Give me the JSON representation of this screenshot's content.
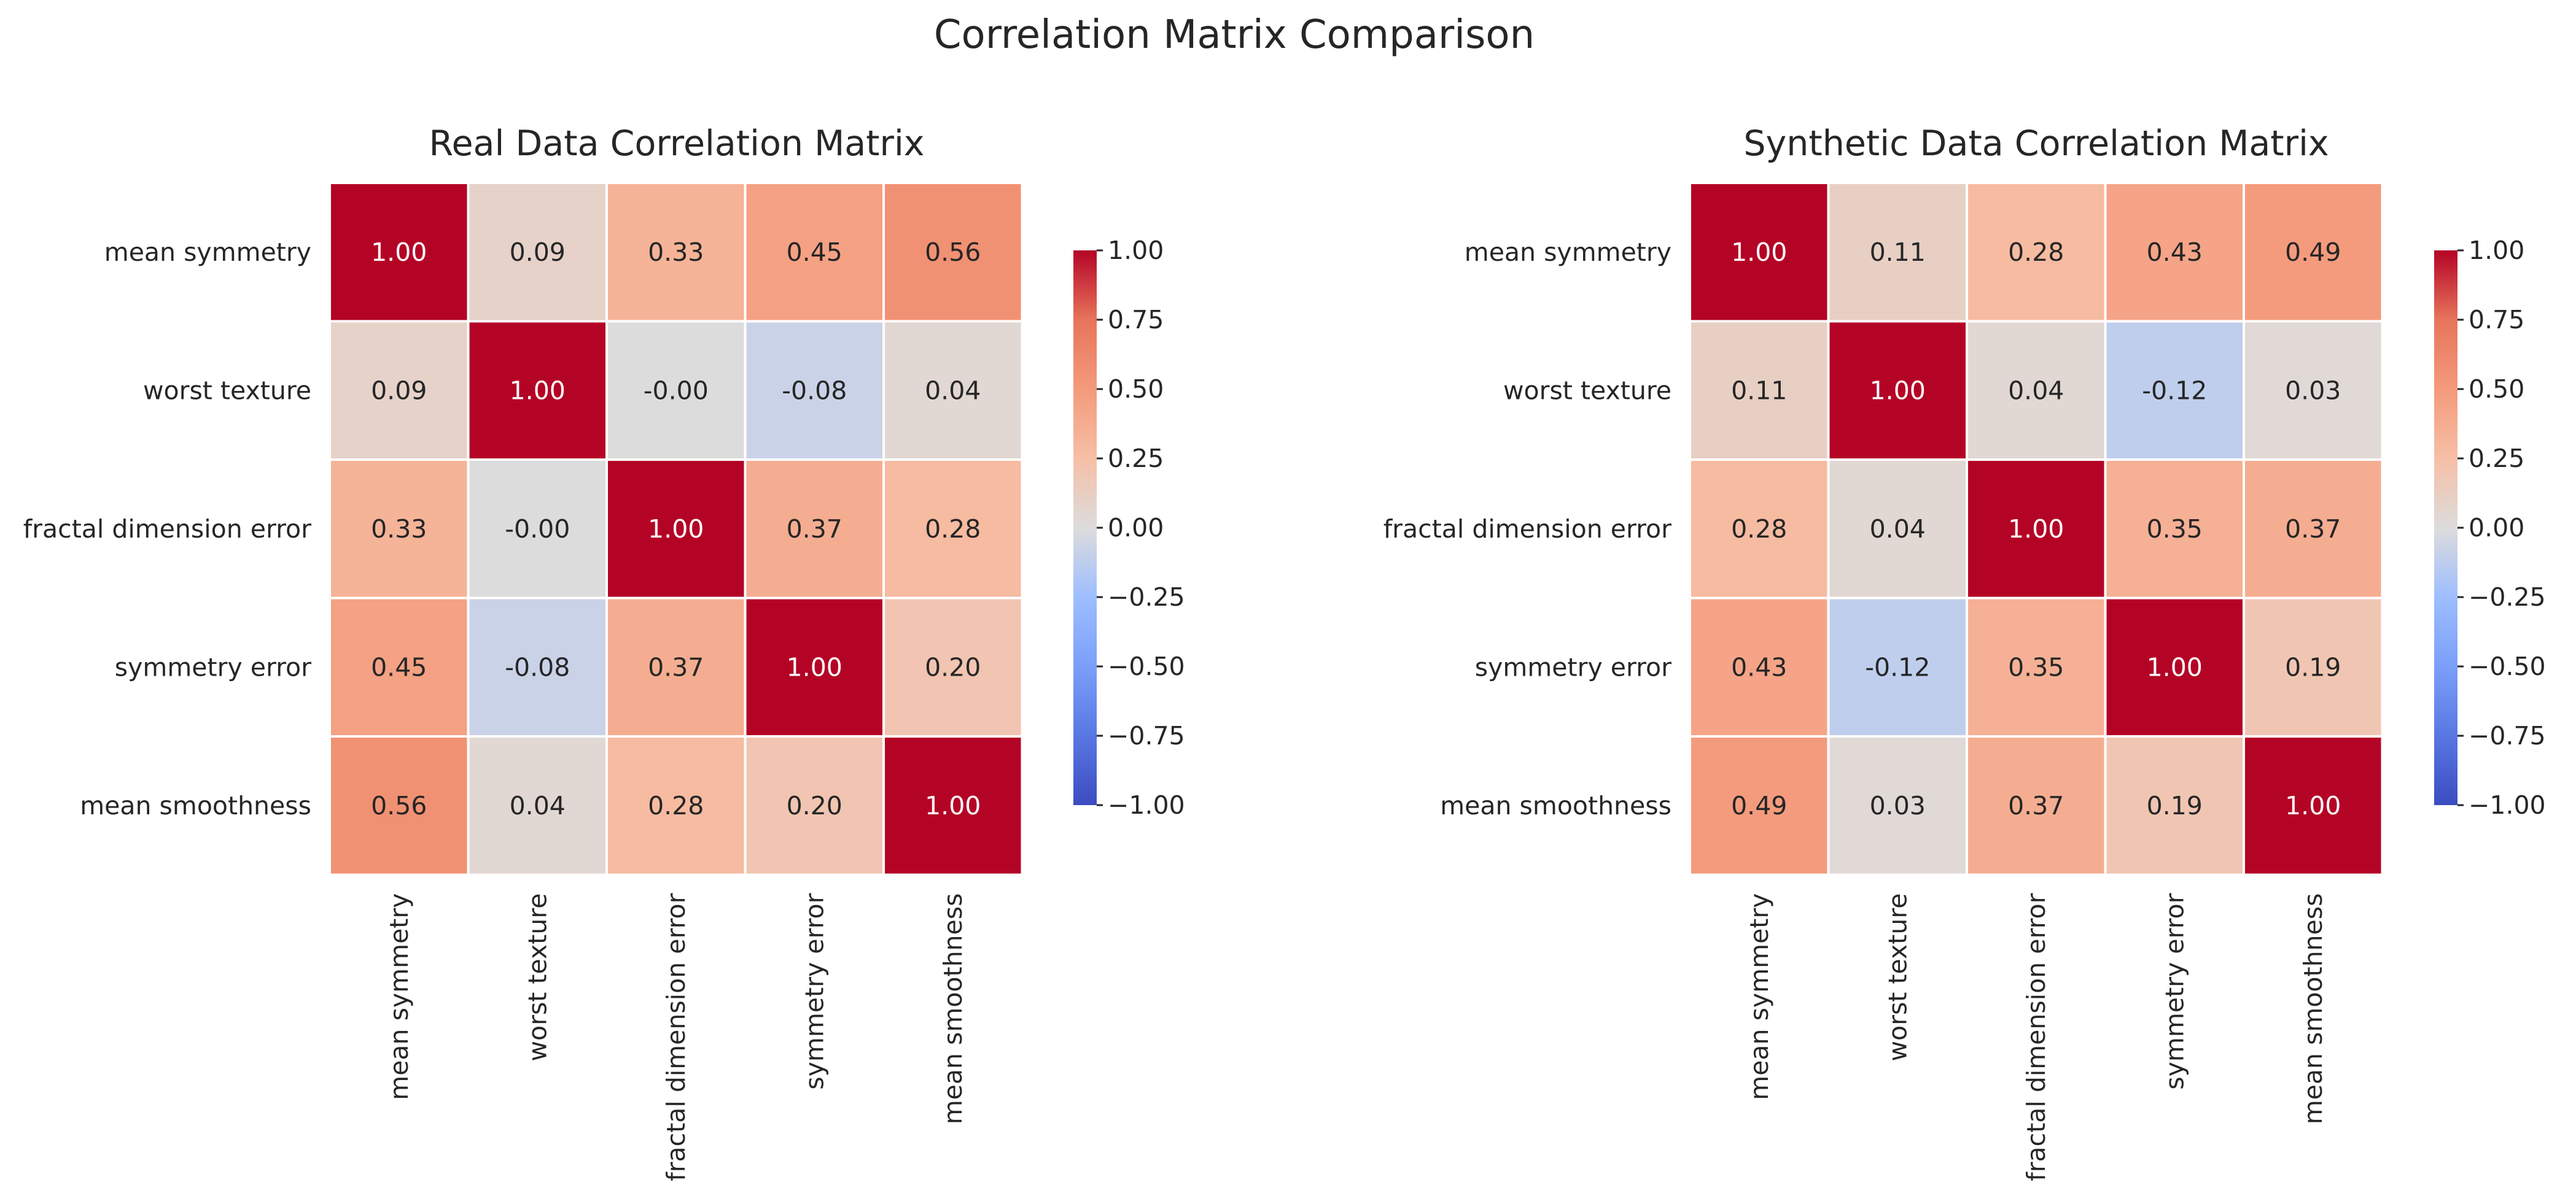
{
  "figure": {
    "suptitle": "Correlation Matrix Comparison"
  },
  "chart_data": [
    {
      "type": "heatmap",
      "title": "Real Data Correlation Matrix",
      "x_categories": [
        "mean symmetry",
        "worst texture",
        "fractal dimension error",
        "symmetry error",
        "mean smoothness"
      ],
      "y_categories": [
        "mean symmetry",
        "worst texture",
        "fractal dimension error",
        "symmetry error",
        "mean smoothness"
      ],
      "values": [
        [
          1.0,
          0.09,
          0.33,
          0.45,
          0.56
        ],
        [
          0.09,
          1.0,
          -0.0,
          -0.08,
          0.04
        ],
        [
          0.33,
          -0.0,
          1.0,
          0.37,
          0.28
        ],
        [
          0.45,
          -0.08,
          0.37,
          1.0,
          0.2
        ],
        [
          0.56,
          0.04,
          0.28,
          0.2,
          1.0
        ]
      ],
      "labels": [
        [
          "1.00",
          "0.09",
          "0.33",
          "0.45",
          "0.56"
        ],
        [
          "0.09",
          "1.00",
          "-0.00",
          "-0.08",
          "0.04"
        ],
        [
          "0.33",
          "-0.00",
          "1.00",
          "0.37",
          "0.28"
        ],
        [
          "0.45",
          "-0.08",
          "0.37",
          "1.00",
          "0.20"
        ],
        [
          "0.56",
          "0.04",
          "0.28",
          "0.20",
          "1.00"
        ]
      ],
      "colormap": "coolwarm",
      "vmin": -1.0,
      "vmax": 1.0,
      "colorbar_ticks": [
        "1.00",
        "0.75",
        "0.50",
        "0.25",
        "0.00",
        "−0.25",
        "−0.50",
        "−0.75",
        "−1.00"
      ]
    },
    {
      "type": "heatmap",
      "title": "Synthetic Data Correlation Matrix",
      "x_categories": [
        "mean symmetry",
        "worst texture",
        "fractal dimension error",
        "symmetry error",
        "mean smoothness"
      ],
      "y_categories": [
        "mean symmetry",
        "worst texture",
        "fractal dimension error",
        "symmetry error",
        "mean smoothness"
      ],
      "values": [
        [
          1.0,
          0.11,
          0.28,
          0.43,
          0.49
        ],
        [
          0.11,
          1.0,
          0.04,
          -0.12,
          0.03
        ],
        [
          0.28,
          0.04,
          1.0,
          0.35,
          0.37
        ],
        [
          0.43,
          -0.12,
          0.35,
          1.0,
          0.19
        ],
        [
          0.49,
          0.03,
          0.37,
          0.19,
          1.0
        ]
      ],
      "labels": [
        [
          "1.00",
          "0.11",
          "0.28",
          "0.43",
          "0.49"
        ],
        [
          "0.11",
          "1.00",
          "0.04",
          "-0.12",
          "0.03"
        ],
        [
          "0.28",
          "0.04",
          "1.00",
          "0.35",
          "0.37"
        ],
        [
          "0.43",
          "-0.12",
          "0.35",
          "1.00",
          "0.19"
        ],
        [
          "0.49",
          "0.03",
          "0.37",
          "0.19",
          "1.00"
        ]
      ],
      "colormap": "coolwarm",
      "vmin": -1.0,
      "vmax": 1.0,
      "colorbar_ticks": [
        "1.00",
        "0.75",
        "0.50",
        "0.25",
        "0.00",
        "−0.25",
        "−0.50",
        "−0.75",
        "−1.00"
      ]
    }
  ]
}
